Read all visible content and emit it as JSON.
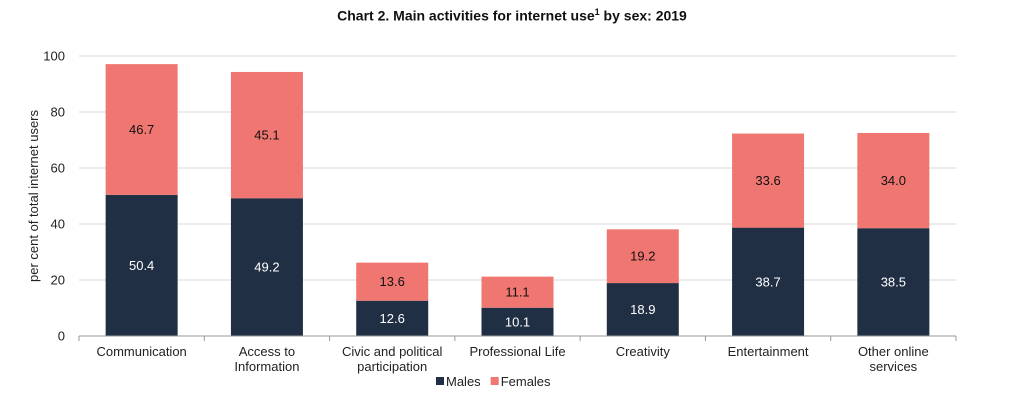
{
  "chart_data": {
    "type": "bar",
    "stacked": true,
    "title_main": "Chart 2. Main activities for internet use",
    "title_sup": "1",
    "title_tail": " by sex: 2019",
    "ylabel": "per cent of total internet users",
    "xlabel": "",
    "ylim": [
      0,
      100
    ],
    "yticks": [
      0,
      20,
      40,
      60,
      80,
      100
    ],
    "grid": true,
    "legend_position": "bottom",
    "categories": [
      [
        "Communication"
      ],
      [
        "Access to",
        "Information"
      ],
      [
        "Civic and political",
        "participation"
      ],
      [
        "Professional Life"
      ],
      [
        "Creativity"
      ],
      [
        "Entertainment"
      ],
      [
        "Other online",
        "services"
      ]
    ],
    "series": [
      {
        "name": "Males",
        "color": "#212f45",
        "label_color": "#ffffff",
        "values": [
          50.4,
          49.2,
          12.6,
          10.1,
          18.9,
          38.7,
          38.5
        ]
      },
      {
        "name": "Females",
        "color": "#f07671",
        "label_color": "#111111",
        "values": [
          46.7,
          45.1,
          13.6,
          11.1,
          19.2,
          33.6,
          34.0
        ]
      }
    ]
  }
}
